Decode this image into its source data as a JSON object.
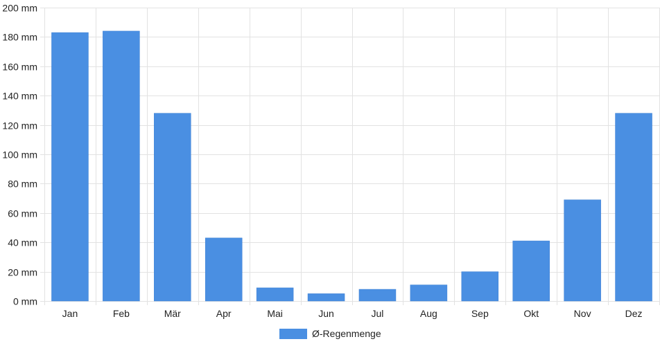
{
  "chart_data": {
    "type": "bar",
    "categories": [
      "Jan",
      "Feb",
      "Mär",
      "Apr",
      "Mai",
      "Jun",
      "Jul",
      "Aug",
      "Sep",
      "Okt",
      "Nov",
      "Dez"
    ],
    "series": [
      {
        "name": "Ø-Regenmenge",
        "values": [
          183,
          184,
          128,
          43,
          9,
          5,
          8,
          11,
          20,
          41,
          69,
          128
        ],
        "color": "#4a8fe2"
      }
    ],
    "y_ticks": [
      "0 mm",
      "20 mm",
      "40 mm",
      "60 mm",
      "80 mm",
      "100 mm",
      "120 mm",
      "140 mm",
      "160 mm",
      "180 mm",
      "200 mm"
    ],
    "ylim": [
      0,
      200
    ],
    "grid": true,
    "legend_position": "bottom-center"
  }
}
